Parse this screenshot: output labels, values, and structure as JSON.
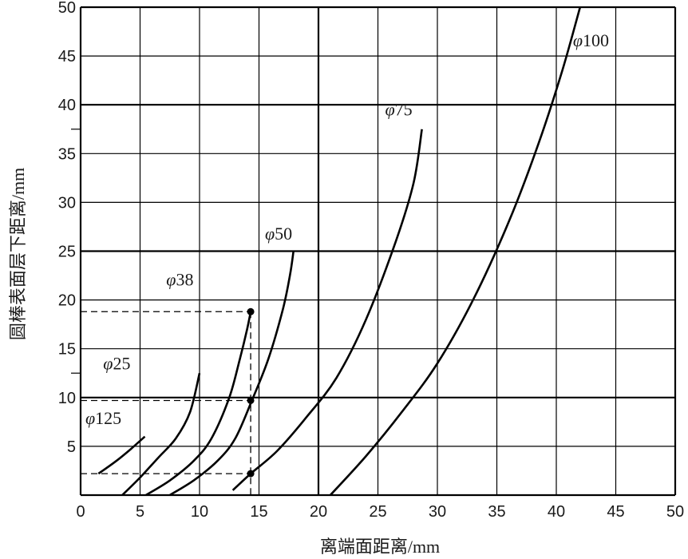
{
  "chart_data": {
    "type": "line",
    "xlabel": "离端面距离/mm",
    "ylabel": "圆棒表面层下距离/mm",
    "xlim": [
      0,
      50
    ],
    "ylim": [
      0,
      50
    ],
    "x_ticks": [
      "0",
      "5",
      "10",
      "15",
      "20",
      "25",
      "30",
      "35",
      "40",
      "45",
      "50"
    ],
    "y_ticks": [
      "5",
      "10",
      "15",
      "20",
      "25",
      "30",
      "35",
      "40",
      "45",
      "50"
    ],
    "grid": true,
    "major_lines": {
      "x": [
        20
      ],
      "y": [
        10,
        25,
        40
      ]
    },
    "series": [
      {
        "name": "φ125",
        "label_prefix": "φ",
        "label_number": "125",
        "label_pos": [
          0.4,
          7.3
        ],
        "points": [
          [
            1.5,
            2.2
          ],
          [
            3.0,
            3.5
          ],
          [
            4.2,
            4.7
          ],
          [
            5.4,
            6.0
          ]
        ]
      },
      {
        "name": "φ25",
        "label_prefix": "φ",
        "label_number": "25",
        "label_pos": [
          1.9,
          12.9
        ],
        "points": [
          [
            3.5,
            0
          ],
          [
            5.0,
            1.8
          ],
          [
            6.5,
            3.8
          ],
          [
            8.0,
            5.8
          ],
          [
            9.2,
            8.5
          ],
          [
            10.0,
            12.5
          ]
        ]
      },
      {
        "name": "φ38",
        "label_prefix": "φ",
        "label_number": "38",
        "label_pos": [
          7.2,
          21.5
        ],
        "points": [
          [
            5.5,
            0
          ],
          [
            7.5,
            1.5
          ],
          [
            9.5,
            3.5
          ],
          [
            11.0,
            5.8
          ],
          [
            12.5,
            10.0
          ],
          [
            13.4,
            14.0
          ],
          [
            14.0,
            17.0
          ],
          [
            14.3,
            18.8
          ]
        ]
      },
      {
        "name": "φ50",
        "label_prefix": "φ",
        "label_number": "50",
        "label_pos": [
          15.5,
          26.2
        ],
        "points": [
          [
            7.5,
            0
          ],
          [
            9.5,
            1.5
          ],
          [
            11.5,
            3.5
          ],
          [
            13.0,
            5.8
          ],
          [
            14.4,
            9.7
          ],
          [
            15.8,
            14.0
          ],
          [
            17.0,
            19.0
          ],
          [
            17.6,
            22.5
          ],
          [
            17.9,
            25.0
          ]
        ]
      },
      {
        "name": "φ75",
        "label_prefix": "φ",
        "label_number": "75",
        "label_pos": [
          25.6,
          38.9
        ],
        "points": [
          [
            12.8,
            0.5
          ],
          [
            14.3,
            2.2
          ],
          [
            16.5,
            4.5
          ],
          [
            19.0,
            8.0
          ],
          [
            21.5,
            12.0
          ],
          [
            24.0,
            18.0
          ],
          [
            26.5,
            26.0
          ],
          [
            28.0,
            32.0
          ],
          [
            28.7,
            37.5
          ]
        ]
      },
      {
        "name": "φ100",
        "label_prefix": "φ",
        "label_number": "100",
        "label_pos": [
          41.4,
          46.0
        ],
        "points": [
          [
            21.0,
            0
          ],
          [
            24.0,
            4.0
          ],
          [
            27.0,
            8.5
          ],
          [
            30.0,
            13.5
          ],
          [
            33.0,
            20.0
          ],
          [
            36.0,
            28.0
          ],
          [
            38.5,
            36.0
          ],
          [
            40.5,
            43.5
          ],
          [
            42.0,
            50.0
          ]
        ]
      }
    ],
    "guides": [
      {
        "points": [
          [
            0,
            18.8
          ],
          [
            14.3,
            18.8
          ]
        ]
      },
      {
        "points": [
          [
            0,
            9.7
          ],
          [
            14.3,
            9.7
          ]
        ]
      },
      {
        "points": [
          [
            0,
            2.2
          ],
          [
            14.3,
            2.2
          ]
        ]
      },
      {
        "points": [
          [
            14.3,
            18.8
          ],
          [
            14.3,
            0
          ]
        ]
      }
    ],
    "markers": [
      [
        14.3,
        18.8
      ],
      [
        14.3,
        9.7
      ],
      [
        14.3,
        2.2
      ]
    ]
  }
}
